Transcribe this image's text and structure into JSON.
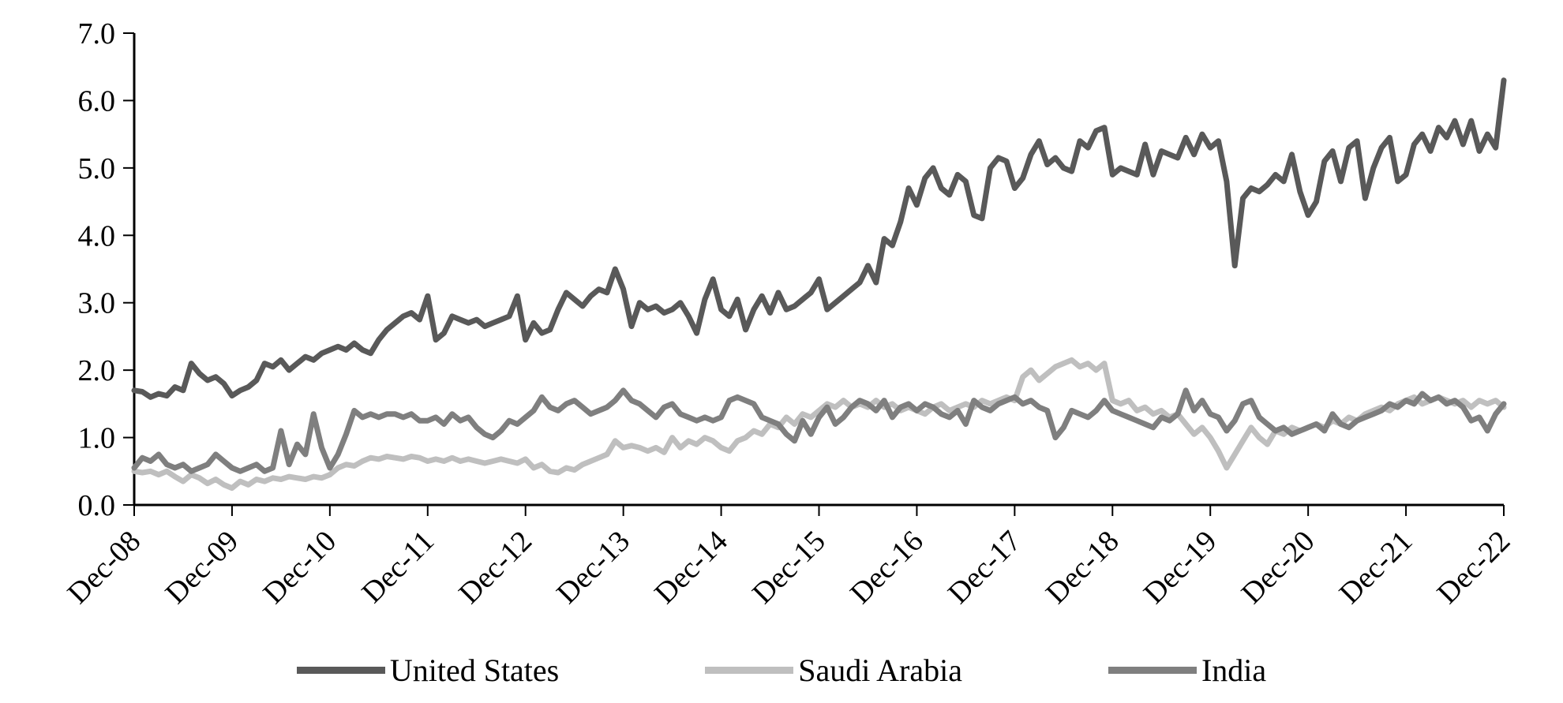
{
  "chart_data": {
    "type": "line",
    "title": "",
    "xlabel": "",
    "ylabel": "",
    "ylim": [
      0,
      7
    ],
    "grid": false,
    "legend_position": "bottom",
    "y_ticks": [
      "0.0",
      "1.0",
      "2.0",
      "3.0",
      "4.0",
      "5.0",
      "6.0",
      "7.0"
    ],
    "x_tick_labels": [
      "Dec-08",
      "Dec-09",
      "Dec-10",
      "Dec-11",
      "Dec-12",
      "Dec-13",
      "Dec-14",
      "Dec-15",
      "Dec-16",
      "Dec-17",
      "Dec-18",
      "Dec-19",
      "Dec-20",
      "Dec-21",
      "Dec-22"
    ],
    "x_points_per_tick": 12,
    "x_frequency": "monthly",
    "series": [
      {
        "name": "United States",
        "color": "#595959",
        "values": [
          1.7,
          1.68,
          1.6,
          1.65,
          1.62,
          1.75,
          1.7,
          2.1,
          1.95,
          1.85,
          1.9,
          1.8,
          1.62,
          1.7,
          1.75,
          1.85,
          2.1,
          2.05,
          2.15,
          2.0,
          2.1,
          2.2,
          2.15,
          2.25,
          2.3,
          2.35,
          2.3,
          2.4,
          2.3,
          2.25,
          2.45,
          2.6,
          2.7,
          2.8,
          2.85,
          2.75,
          3.1,
          2.45,
          2.55,
          2.8,
          2.75,
          2.7,
          2.75,
          2.65,
          2.7,
          2.75,
          2.8,
          3.1,
          2.45,
          2.7,
          2.55,
          2.6,
          2.9,
          3.15,
          3.05,
          2.95,
          3.1,
          3.2,
          3.15,
          3.5,
          3.2,
          2.65,
          3.0,
          2.9,
          2.95,
          2.85,
          2.9,
          3.0,
          2.8,
          2.55,
          3.05,
          3.35,
          2.9,
          2.8,
          3.05,
          2.6,
          2.9,
          3.1,
          2.85,
          3.15,
          2.9,
          2.95,
          3.05,
          3.15,
          3.35,
          2.9,
          3.0,
          3.1,
          3.2,
          3.3,
          3.55,
          3.3,
          3.95,
          3.85,
          4.2,
          4.7,
          4.45,
          4.85,
          5.0,
          4.7,
          4.6,
          4.9,
          4.8,
          4.3,
          4.25,
          5.0,
          5.15,
          5.1,
          4.7,
          4.85,
          5.2,
          5.4,
          5.05,
          5.15,
          5.0,
          4.95,
          5.4,
          5.3,
          5.55,
          5.6,
          4.9,
          5.0,
          4.95,
          4.9,
          5.35,
          4.9,
          5.25,
          5.2,
          5.15,
          5.45,
          5.2,
          5.5,
          5.3,
          5.4,
          4.8,
          3.55,
          4.55,
          4.7,
          4.65,
          4.75,
          4.9,
          4.8,
          5.2,
          4.65,
          4.3,
          4.5,
          5.1,
          5.25,
          4.8,
          5.3,
          5.4,
          4.55,
          5.0,
          5.3,
          5.45,
          4.8,
          4.9,
          5.35,
          5.5,
          5.25,
          5.6,
          5.45,
          5.7,
          5.35,
          5.7,
          5.25,
          5.5,
          5.3,
          6.3
        ]
      },
      {
        "name": "Saudi Arabia",
        "color": "#bfbfbf",
        "values": [
          0.5,
          0.48,
          0.5,
          0.45,
          0.5,
          0.42,
          0.35,
          0.45,
          0.4,
          0.32,
          0.38,
          0.3,
          0.25,
          0.35,
          0.3,
          0.38,
          0.35,
          0.4,
          0.38,
          0.42,
          0.4,
          0.38,
          0.42,
          0.4,
          0.45,
          0.55,
          0.6,
          0.58,
          0.65,
          0.7,
          0.68,
          0.72,
          0.7,
          0.68,
          0.72,
          0.7,
          0.65,
          0.68,
          0.65,
          0.7,
          0.65,
          0.68,
          0.65,
          0.62,
          0.65,
          0.68,
          0.65,
          0.62,
          0.68,
          0.55,
          0.6,
          0.5,
          0.48,
          0.55,
          0.52,
          0.6,
          0.65,
          0.7,
          0.75,
          0.95,
          0.85,
          0.88,
          0.85,
          0.8,
          0.85,
          0.78,
          1.0,
          0.85,
          0.95,
          0.9,
          1.0,
          0.95,
          0.85,
          0.8,
          0.95,
          1.0,
          1.1,
          1.05,
          1.2,
          1.15,
          1.3,
          1.2,
          1.35,
          1.3,
          1.4,
          1.5,
          1.45,
          1.55,
          1.45,
          1.5,
          1.45,
          1.55,
          1.45,
          1.5,
          1.4,
          1.45,
          1.4,
          1.35,
          1.45,
          1.5,
          1.4,
          1.45,
          1.5,
          1.45,
          1.55,
          1.5,
          1.55,
          1.6,
          1.55,
          1.9,
          2.0,
          1.85,
          1.95,
          2.05,
          2.1,
          2.15,
          2.05,
          2.1,
          2.0,
          2.1,
          1.55,
          1.5,
          1.55,
          1.4,
          1.45,
          1.35,
          1.4,
          1.3,
          1.35,
          1.2,
          1.05,
          1.15,
          1.0,
          0.8,
          0.55,
          0.75,
          0.95,
          1.15,
          1.0,
          0.9,
          1.1,
          1.05,
          1.15,
          1.1,
          1.15,
          1.2,
          1.15,
          1.25,
          1.2,
          1.3,
          1.25,
          1.35,
          1.4,
          1.45,
          1.4,
          1.5,
          1.55,
          1.6,
          1.5,
          1.55,
          1.6,
          1.55,
          1.5,
          1.55,
          1.45,
          1.55,
          1.5,
          1.55,
          1.45
        ]
      },
      {
        "name": "India",
        "color": "#7f7f7f",
        "values": [
          0.55,
          0.7,
          0.65,
          0.75,
          0.6,
          0.55,
          0.6,
          0.5,
          0.55,
          0.6,
          0.75,
          0.65,
          0.55,
          0.5,
          0.55,
          0.6,
          0.5,
          0.55,
          1.1,
          0.6,
          0.9,
          0.75,
          1.35,
          0.85,
          0.55,
          0.75,
          1.05,
          1.4,
          1.3,
          1.35,
          1.3,
          1.35,
          1.35,
          1.3,
          1.35,
          1.25,
          1.25,
          1.3,
          1.2,
          1.35,
          1.25,
          1.3,
          1.15,
          1.05,
          1.0,
          1.1,
          1.25,
          1.2,
          1.3,
          1.4,
          1.6,
          1.45,
          1.4,
          1.5,
          1.55,
          1.45,
          1.35,
          1.4,
          1.45,
          1.55,
          1.7,
          1.55,
          1.5,
          1.4,
          1.3,
          1.45,
          1.5,
          1.35,
          1.3,
          1.25,
          1.3,
          1.25,
          1.3,
          1.55,
          1.6,
          1.55,
          1.5,
          1.3,
          1.25,
          1.2,
          1.05,
          0.95,
          1.25,
          1.05,
          1.3,
          1.45,
          1.2,
          1.3,
          1.45,
          1.55,
          1.5,
          1.4,
          1.55,
          1.3,
          1.45,
          1.5,
          1.4,
          1.5,
          1.45,
          1.35,
          1.3,
          1.4,
          1.2,
          1.55,
          1.45,
          1.4,
          1.5,
          1.55,
          1.6,
          1.5,
          1.55,
          1.45,
          1.4,
          1.0,
          1.15,
          1.4,
          1.35,
          1.3,
          1.4,
          1.55,
          1.4,
          1.35,
          1.3,
          1.25,
          1.2,
          1.15,
          1.3,
          1.25,
          1.35,
          1.7,
          1.4,
          1.55,
          1.35,
          1.3,
          1.1,
          1.25,
          1.5,
          1.55,
          1.3,
          1.2,
          1.1,
          1.15,
          1.05,
          1.1,
          1.15,
          1.2,
          1.1,
          1.35,
          1.2,
          1.15,
          1.25,
          1.3,
          1.35,
          1.4,
          1.5,
          1.45,
          1.55,
          1.5,
          1.65,
          1.55,
          1.6,
          1.5,
          1.55,
          1.45,
          1.25,
          1.3,
          1.1,
          1.35,
          1.5
        ]
      }
    ]
  }
}
